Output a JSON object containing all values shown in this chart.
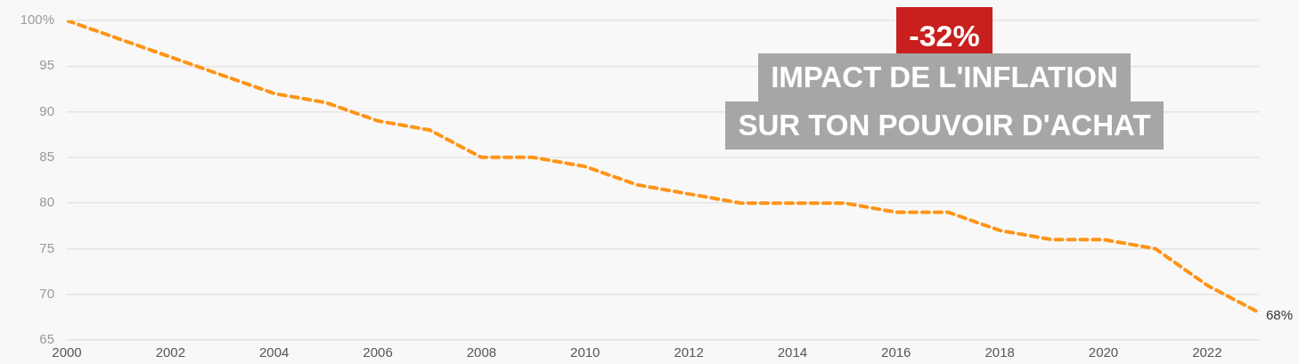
{
  "chart_data": {
    "type": "line",
    "x": [
      2000,
      2001,
      2002,
      2003,
      2004,
      2005,
      2006,
      2007,
      2008,
      2009,
      2010,
      2011,
      2012,
      2013,
      2014,
      2015,
      2016,
      2017,
      2018,
      2019,
      2020,
      2021,
      2022,
      2023
    ],
    "series": [
      {
        "color": "#ff9416",
        "values": [
          100,
          98,
          96,
          94,
          92,
          91,
          89,
          88,
          85,
          85,
          84,
          82,
          81,
          80,
          80,
          80,
          79,
          79,
          77,
          76,
          76,
          75,
          71,
          68
        ],
        "value_labels": [
          null,
          null,
          null,
          null,
          null,
          null,
          null,
          null,
          null,
          null,
          null,
          null,
          null,
          null,
          null,
          null,
          null,
          null,
          null,
          null,
          null,
          null,
          null,
          "68%"
        ]
      }
    ],
    "xlim": [
      2000,
      2023
    ],
    "xticks": [
      2000,
      2002,
      2004,
      2006,
      2008,
      2010,
      2012,
      2014,
      2016,
      2018,
      2020,
      2022
    ],
    "ylim": [
      65,
      100
    ],
    "yticks": [
      65,
      70,
      75,
      80,
      85,
      90,
      95,
      {
        "value": 100,
        "label": "100%"
      }
    ],
    "grid": "y",
    "legend": false,
    "marker": "none",
    "line_style": "dashed",
    "annotations": [
      "-32%",
      "IMPACT DE L'INFLATION\nSUR TON POUVOIR D'ACHAT"
    ]
  }
}
